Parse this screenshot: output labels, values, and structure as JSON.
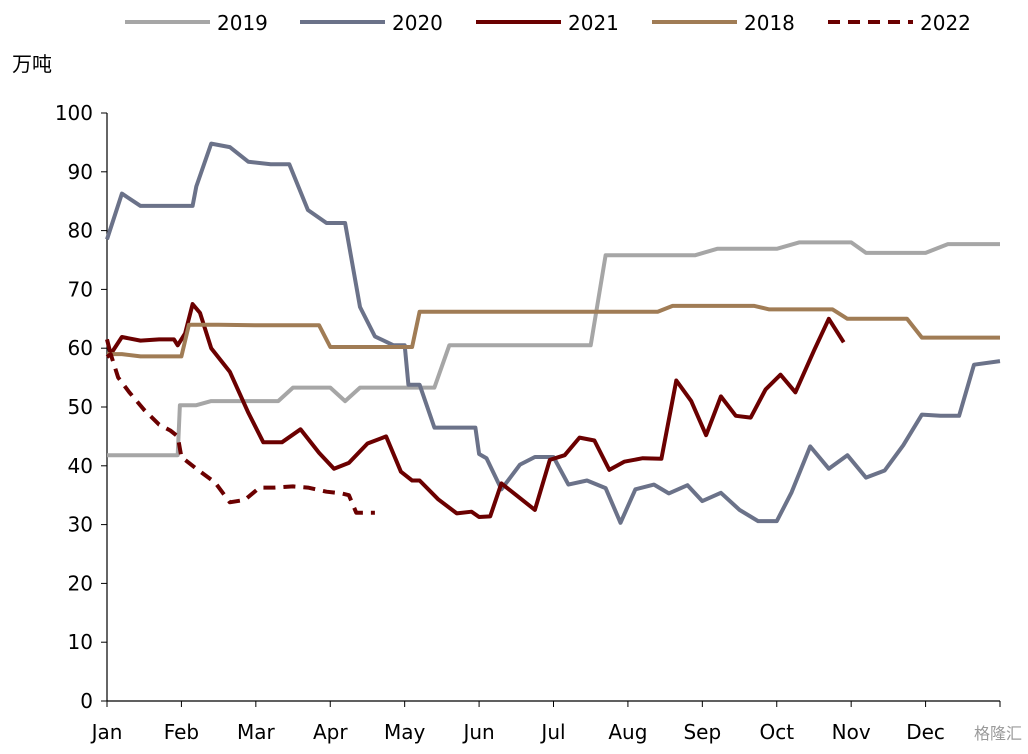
{
  "chart_data": {
    "type": "line",
    "ylabel": "万吨",
    "ylim": [
      0,
      100
    ],
    "yticks": [
      0,
      10,
      20,
      30,
      40,
      50,
      60,
      70,
      80,
      90,
      100
    ],
    "xlim": [
      0,
      12
    ],
    "month_labels": [
      "Jan",
      "Feb",
      "Mar",
      "Apr",
      "May",
      "Jun",
      "Jul",
      "Aug",
      "Sep",
      "Oct",
      "Nov",
      "Dec"
    ],
    "legend_position": "top",
    "grid": false,
    "series": [
      {
        "name": "2019",
        "color": "#a6a6a6",
        "dash": "solid",
        "points": [
          [
            0,
            41.8
          ],
          [
            0.95,
            41.8
          ],
          [
            0.98,
            50.3
          ],
          [
            1.2,
            50.3
          ],
          [
            1.4,
            51
          ],
          [
            2.0,
            51
          ],
          [
            2.3,
            51
          ],
          [
            2.5,
            53.3
          ],
          [
            3.0,
            53.3
          ],
          [
            3.2,
            51
          ],
          [
            3.4,
            53.3
          ],
          [
            4.0,
            53.3
          ],
          [
            4.4,
            53.3
          ],
          [
            4.6,
            60.5
          ],
          [
            5.0,
            60.5
          ],
          [
            5.5,
            60.5
          ],
          [
            6.0,
            60.5
          ],
          [
            6.5,
            60.5
          ],
          [
            6.7,
            75.8
          ],
          [
            7.0,
            75.8
          ],
          [
            7.5,
            75.8
          ],
          [
            7.9,
            75.8
          ],
          [
            8.2,
            76.9
          ],
          [
            9.0,
            76.9
          ],
          [
            9.3,
            78
          ],
          [
            9.5,
            78
          ],
          [
            10.0,
            78
          ],
          [
            10.2,
            76.2
          ],
          [
            10.5,
            76.2
          ],
          [
            11.0,
            76.2
          ],
          [
            11.3,
            77.7
          ],
          [
            12.0,
            77.7
          ]
        ]
      },
      {
        "name": "2020",
        "color": "#6b7289",
        "dash": "solid",
        "points": [
          [
            0,
            78.5
          ],
          [
            0.2,
            86.3
          ],
          [
            0.45,
            84.2
          ],
          [
            0.7,
            84.2
          ],
          [
            1.0,
            84.2
          ],
          [
            1.15,
            84.2
          ],
          [
            1.2,
            87.5
          ],
          [
            1.4,
            94.8
          ],
          [
            1.65,
            94.2
          ],
          [
            1.9,
            91.7
          ],
          [
            2.2,
            91.3
          ],
          [
            2.45,
            91.3
          ],
          [
            2.7,
            83.5
          ],
          [
            2.95,
            81.3
          ],
          [
            3.2,
            81.3
          ],
          [
            3.4,
            67
          ],
          [
            3.6,
            62
          ],
          [
            3.85,
            60.5
          ],
          [
            4.0,
            60.5
          ],
          [
            4.05,
            53.8
          ],
          [
            4.2,
            53.8
          ],
          [
            4.4,
            46.5
          ],
          [
            4.7,
            46.5
          ],
          [
            4.95,
            46.5
          ],
          [
            5.0,
            42
          ],
          [
            5.1,
            41.3
          ],
          [
            5.3,
            36
          ],
          [
            5.55,
            40.2
          ],
          [
            5.75,
            41.5
          ],
          [
            6.0,
            41.5
          ],
          [
            6.2,
            36.8
          ],
          [
            6.45,
            37.5
          ],
          [
            6.7,
            36.2
          ],
          [
            6.9,
            30.3
          ],
          [
            7.1,
            36
          ],
          [
            7.35,
            36.8
          ],
          [
            7.55,
            35.3
          ],
          [
            7.8,
            36.7
          ],
          [
            8.0,
            34
          ],
          [
            8.25,
            35.4
          ],
          [
            8.5,
            32.5
          ],
          [
            8.75,
            30.6
          ],
          [
            9.0,
            30.6
          ],
          [
            9.2,
            35.5
          ],
          [
            9.45,
            43.3
          ],
          [
            9.7,
            39.5
          ],
          [
            9.95,
            41.8
          ],
          [
            10.2,
            38
          ],
          [
            10.45,
            39.2
          ],
          [
            10.7,
            43.5
          ],
          [
            10.95,
            48.7
          ],
          [
            11.2,
            48.5
          ],
          [
            11.45,
            48.5
          ],
          [
            11.65,
            57.2
          ],
          [
            12.0,
            57.8
          ]
        ]
      },
      {
        "name": "2021",
        "color": "#6b0000",
        "dash": "solid",
        "points": [
          [
            0,
            61.5
          ],
          [
            0.05,
            59
          ],
          [
            0.2,
            61.9
          ],
          [
            0.45,
            61.3
          ],
          [
            0.7,
            61.5
          ],
          [
            0.9,
            61.5
          ],
          [
            0.95,
            60.5
          ],
          [
            1.05,
            62.5
          ],
          [
            1.15,
            67.5
          ],
          [
            1.25,
            66
          ],
          [
            1.4,
            60
          ],
          [
            1.65,
            56
          ],
          [
            1.9,
            49
          ],
          [
            2.1,
            44
          ],
          [
            2.35,
            44
          ],
          [
            2.6,
            46.2
          ],
          [
            2.85,
            42.2
          ],
          [
            3.05,
            39.5
          ],
          [
            3.25,
            40.5
          ],
          [
            3.5,
            43.8
          ],
          [
            3.75,
            45
          ],
          [
            3.95,
            39
          ],
          [
            4.1,
            37.5
          ],
          [
            4.2,
            37.5
          ],
          [
            4.45,
            34.3
          ],
          [
            4.7,
            31.9
          ],
          [
            4.9,
            32.2
          ],
          [
            5.0,
            31.3
          ],
          [
            5.15,
            31.4
          ],
          [
            5.3,
            37
          ],
          [
            5.5,
            35
          ],
          [
            5.75,
            32.5
          ],
          [
            5.95,
            41
          ],
          [
            6.15,
            41.8
          ],
          [
            6.35,
            44.8
          ],
          [
            6.55,
            44.3
          ],
          [
            6.75,
            39.3
          ],
          [
            6.95,
            40.7
          ],
          [
            7.2,
            41.3
          ],
          [
            7.45,
            41.2
          ],
          [
            7.65,
            54.5
          ],
          [
            7.85,
            51
          ],
          [
            8.05,
            45.2
          ],
          [
            8.25,
            51.8
          ],
          [
            8.45,
            48.5
          ],
          [
            8.65,
            48.2
          ],
          [
            8.85,
            53
          ],
          [
            9.05,
            55.5
          ],
          [
            9.25,
            52.5
          ],
          [
            9.5,
            59.6
          ],
          [
            9.7,
            65
          ],
          [
            9.9,
            61
          ]
        ]
      },
      {
        "name": "2018",
        "color": "#a07c55",
        "dash": "solid",
        "points": [
          [
            0,
            59
          ],
          [
            0.2,
            59
          ],
          [
            0.45,
            58.6
          ],
          [
            0.7,
            58.6
          ],
          [
            1.0,
            58.6
          ],
          [
            1.1,
            64
          ],
          [
            1.5,
            64
          ],
          [
            2.0,
            63.9
          ],
          [
            2.5,
            63.9
          ],
          [
            2.85,
            63.9
          ],
          [
            3.0,
            60.2
          ],
          [
            3.5,
            60.2
          ],
          [
            4.0,
            60.2
          ],
          [
            4.1,
            60.2
          ],
          [
            4.2,
            66.2
          ],
          [
            5.0,
            66.2
          ],
          [
            6.0,
            66.2
          ],
          [
            7.0,
            66.2
          ],
          [
            7.4,
            66.2
          ],
          [
            7.6,
            67.2
          ],
          [
            8.0,
            67.2
          ],
          [
            8.7,
            67.2
          ],
          [
            8.9,
            66.6
          ],
          [
            9.5,
            66.6
          ],
          [
            9.75,
            66.6
          ],
          [
            9.95,
            65
          ],
          [
            10.5,
            65
          ],
          [
            10.75,
            65
          ],
          [
            10.95,
            61.8
          ],
          [
            11.5,
            61.8
          ],
          [
            12.0,
            61.8
          ]
        ]
      },
      {
        "name": "2022",
        "color": "#6b0000",
        "dash": "dashed",
        "points": [
          [
            0,
            58.5
          ],
          [
            0.05,
            59
          ],
          [
            0.15,
            55
          ],
          [
            0.3,
            52.5
          ],
          [
            0.5,
            49.5
          ],
          [
            0.7,
            47
          ],
          [
            0.85,
            46
          ],
          [
            0.95,
            45
          ],
          [
            1.0,
            41.5
          ],
          [
            1.2,
            39.5
          ],
          [
            1.45,
            37.2
          ],
          [
            1.65,
            33.8
          ],
          [
            1.85,
            34.2
          ],
          [
            2.05,
            36.3
          ],
          [
            2.25,
            36.3
          ],
          [
            2.5,
            36.5
          ],
          [
            2.7,
            36.3
          ],
          [
            2.95,
            35.6
          ],
          [
            3.15,
            35.3
          ],
          [
            3.25,
            35
          ],
          [
            3.35,
            32
          ],
          [
            3.6,
            32
          ]
        ]
      }
    ]
  },
  "watermark": "格隆汇"
}
